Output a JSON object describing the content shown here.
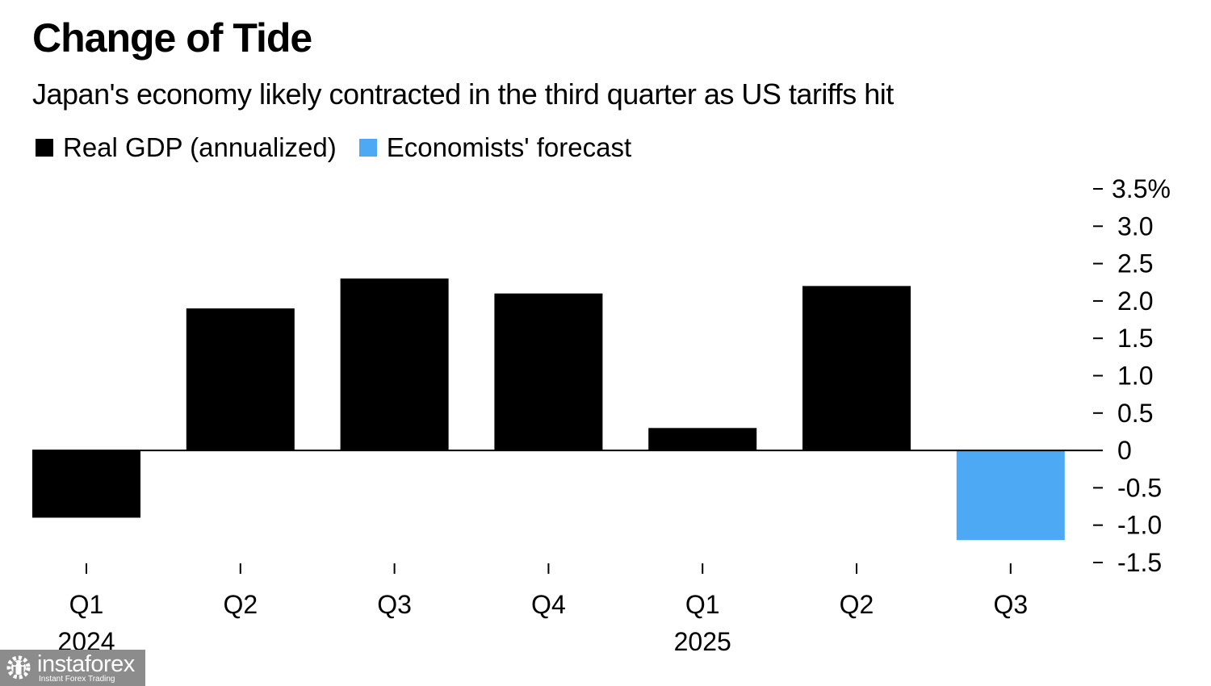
{
  "chart_data": {
    "type": "bar",
    "title": "Change of Tide",
    "subtitle": "Japan's economy likely contracted in the third quarter as US tariffs hit",
    "legend": [
      {
        "name": "Real GDP (annualized)",
        "color": "#000000"
      },
      {
        "name": "Economists' forecast",
        "color": "#4ea9f5"
      }
    ],
    "categories": [
      "Q1 2024",
      "Q2 2024",
      "Q3 2024",
      "Q4 2024",
      "Q1 2025",
      "Q2 2025",
      "Q3 2025"
    ],
    "tick_labels": [
      "Q1",
      "Q2",
      "Q3",
      "Q4",
      "Q1",
      "Q2",
      "Q3"
    ],
    "year_labels": [
      {
        "index": 0,
        "label": "2024"
      },
      {
        "index": 4,
        "label": "2025"
      }
    ],
    "values": [
      -0.9,
      1.9,
      2.3,
      2.1,
      0.3,
      2.2,
      -1.2
    ],
    "series_of_bar": [
      "Real GDP (annualized)",
      "Real GDP (annualized)",
      "Real GDP (annualized)",
      "Real GDP (annualized)",
      "Real GDP (annualized)",
      "Real GDP (annualized)",
      "Economists' forecast"
    ],
    "ylim": [
      -1.5,
      3.5
    ],
    "yticks": [
      3.5,
      3.0,
      2.5,
      2.0,
      1.5,
      1.0,
      0.5,
      0,
      -0.5,
      -1.0,
      -1.5
    ],
    "ytick_labels": [
      "3.5%",
      "3.0",
      "2.5",
      "2.0",
      "1.5",
      "1.0",
      "0.5",
      "0",
      "-0.5",
      "-1.0",
      "-1.5"
    ],
    "yaxis_position": "right",
    "xlabel": "",
    "ylabel": "",
    "grid": false,
    "legend_position": "top-left"
  },
  "watermark": {
    "brand": "instaforex",
    "tagline": "Instant Forex Trading"
  }
}
